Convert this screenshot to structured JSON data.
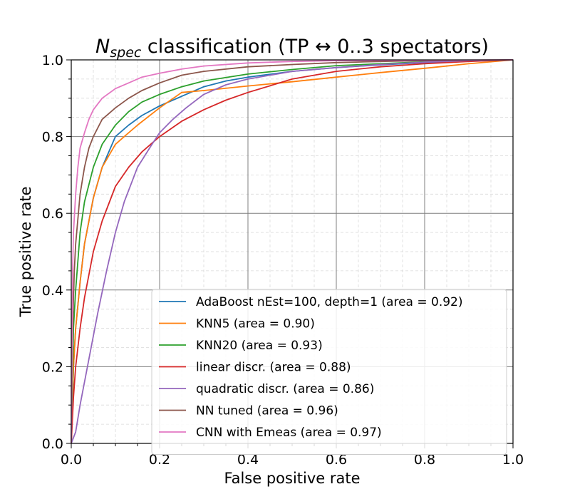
{
  "chart_data": {
    "type": "line",
    "title": {
      "main": "N",
      "sub": "spec",
      "rest": " classification (TP ↔ 0..3 spectators)"
    },
    "xlabel": "False positive rate",
    "ylabel": "True positive rate",
    "xlim": [
      0.0,
      1.0
    ],
    "ylim": [
      0.0,
      1.0
    ],
    "xticks": [
      "0.0",
      "0.2",
      "0.4",
      "0.6",
      "0.8",
      "1.0"
    ],
    "yticks": [
      "0.0",
      "0.2",
      "0.4",
      "0.6",
      "0.8",
      "1.0"
    ],
    "grid": {
      "major": true,
      "minor": true
    },
    "legend_position": "lower-right",
    "series": [
      {
        "name": "AdaBoost nEst=100, depth=1 (area = 0.92)",
        "color": "#1f77b4",
        "x": [
          0,
          0.005,
          0.01,
          0.02,
          0.03,
          0.05,
          0.07,
          0.1,
          0.13,
          0.16,
          0.2,
          0.25,
          0.3,
          0.35,
          0.4,
          0.5,
          0.6,
          0.7,
          0.8,
          0.9,
          1.0
        ],
        "y": [
          0,
          0.2,
          0.3,
          0.42,
          0.52,
          0.64,
          0.72,
          0.8,
          0.83,
          0.855,
          0.88,
          0.905,
          0.93,
          0.945,
          0.955,
          0.97,
          0.98,
          0.987,
          0.993,
          0.997,
          1.0
        ]
      },
      {
        "name": "KNN5 (area = 0.90)",
        "color": "#ff7f0e",
        "x": [
          0,
          0.005,
          0.01,
          0.02,
          0.03,
          0.05,
          0.07,
          0.1,
          0.12,
          0.15,
          0.2,
          0.25,
          0.3,
          0.4,
          0.5,
          0.6,
          0.7,
          0.8,
          0.9,
          1.0
        ],
        "y": [
          0,
          0.2,
          0.3,
          0.42,
          0.52,
          0.64,
          0.72,
          0.78,
          0.8,
          0.83,
          0.875,
          0.915,
          0.92,
          0.932,
          0.943,
          0.955,
          0.967,
          0.978,
          0.99,
          1.0
        ]
      },
      {
        "name": "KNN20 (area = 0.93)",
        "color": "#2ca02c",
        "x": [
          0,
          0.005,
          0.01,
          0.02,
          0.03,
          0.05,
          0.07,
          0.1,
          0.13,
          0.16,
          0.2,
          0.25,
          0.3,
          0.4,
          0.5,
          0.6,
          0.7,
          0.8,
          0.9,
          1.0
        ],
        "y": [
          0,
          0.3,
          0.4,
          0.55,
          0.63,
          0.72,
          0.78,
          0.83,
          0.865,
          0.89,
          0.91,
          0.93,
          0.945,
          0.963,
          0.975,
          0.985,
          0.99,
          0.995,
          0.998,
          1.0
        ]
      },
      {
        "name": "linear discr. (area = 0.88)",
        "color": "#d62728",
        "x": [
          0,
          0.005,
          0.01,
          0.02,
          0.03,
          0.05,
          0.07,
          0.1,
          0.13,
          0.16,
          0.2,
          0.25,
          0.3,
          0.35,
          0.4,
          0.5,
          0.6,
          0.7,
          0.8,
          0.9,
          1.0
        ],
        "y": [
          0,
          0.12,
          0.2,
          0.3,
          0.38,
          0.5,
          0.58,
          0.67,
          0.72,
          0.76,
          0.8,
          0.84,
          0.87,
          0.895,
          0.915,
          0.95,
          0.97,
          0.982,
          0.99,
          0.996,
          1.0
        ]
      },
      {
        "name": "quadratic discr. (area = 0.86)",
        "color": "#9467bd",
        "x": [
          0,
          0.01,
          0.02,
          0.04,
          0.06,
          0.08,
          0.1,
          0.12,
          0.15,
          0.18,
          0.2,
          0.23,
          0.26,
          0.3,
          0.35,
          0.4,
          0.5,
          0.6,
          0.7,
          0.8,
          0.9,
          1.0
        ],
        "y": [
          0,
          0.03,
          0.1,
          0.22,
          0.34,
          0.45,
          0.55,
          0.63,
          0.72,
          0.775,
          0.81,
          0.845,
          0.875,
          0.91,
          0.935,
          0.95,
          0.97,
          0.98,
          0.988,
          0.994,
          0.998,
          1.0
        ]
      },
      {
        "name": "NN tuned (area = 0.96)",
        "color": "#8c564b",
        "x": [
          0,
          0.003,
          0.007,
          0.01,
          0.02,
          0.03,
          0.04,
          0.05,
          0.07,
          0.1,
          0.13,
          0.16,
          0.2,
          0.25,
          0.3,
          0.4,
          0.5,
          0.6,
          0.7,
          0.8,
          0.9,
          1.0
        ],
        "y": [
          0,
          0.3,
          0.45,
          0.52,
          0.65,
          0.72,
          0.77,
          0.8,
          0.845,
          0.875,
          0.9,
          0.92,
          0.94,
          0.96,
          0.97,
          0.982,
          0.988,
          0.993,
          0.996,
          0.998,
          0.999,
          1.0
        ]
      },
      {
        "name": "CNN with Emeas (area = 0.97)",
        "color": "#e377c2",
        "x": [
          0,
          0.003,
          0.005,
          0.01,
          0.015,
          0.02,
          0.03,
          0.04,
          0.05,
          0.07,
          0.1,
          0.13,
          0.16,
          0.2,
          0.25,
          0.3,
          0.4,
          0.5,
          0.6,
          0.8,
          1.0
        ],
        "y": [
          0,
          0.45,
          0.55,
          0.65,
          0.72,
          0.77,
          0.81,
          0.845,
          0.87,
          0.9,
          0.925,
          0.94,
          0.955,
          0.965,
          0.976,
          0.984,
          0.992,
          0.996,
          0.998,
          0.999,
          1.0
        ]
      }
    ]
  }
}
